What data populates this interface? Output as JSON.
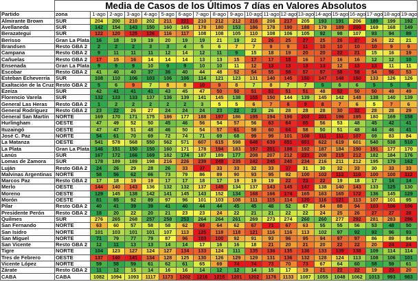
{
  "chart_data": {
    "type": "heatmap",
    "title": "Media de Casos de los Últimos 7 días en Valores Absolutos",
    "col_partido": "Partido",
    "col_zona": "zona",
    "dates": [
      "1-ago",
      "2-ago",
      "3-ago",
      "4-ago",
      "5-ago",
      "6-ago",
      "7-ago",
      "8-ago",
      "9-ago",
      "10-ago",
      "11-ago",
      "12-ago",
      "13-ago",
      "14-ago",
      "15-ago",
      "16-ago",
      "17-ago",
      "18-ago",
      "19-ago"
    ],
    "color_scale": {
      "low": "#2ea84a",
      "mid": "#f5f542",
      "high": "#e8161b",
      "scope": "per-row"
    },
    "rows": [
      {
        "partido": "Almirante Brown",
        "zona": "SUR",
        "values": [
          204,
          200,
          210,
          202,
          211,
          221,
          210,
          212,
          212,
          216,
          208,
          217,
          205,
          193,
          191,
          206,
          189,
          199,
          192
        ]
      },
      {
        "partido": "Avellaneda",
        "zona": "SUR",
        "values": [
          142,
          154,
          143,
          150,
          160,
          165,
          178,
          180,
          153,
          186,
          178,
          190,
          188,
          179,
          189,
          200,
          169,
          168,
          149
        ]
      },
      {
        "partido": "Berazategui",
        "zona": "SUR",
        "values": [
          122,
          120,
          125,
          126,
          116,
          117,
          108,
          108,
          105,
          110,
          108,
          106,
          105,
          92,
          98,
          107,
          93,
          94,
          89
        ]
      },
      {
        "partido": "Berisso",
        "zona": "Gran La Plata",
        "values": [
          16,
          18,
          19,
          19,
          20,
          19,
          19,
          21,
          19,
          22,
          26,
          25,
          27,
          25,
          26,
          27,
          24,
          22,
          21
        ]
      },
      {
        "partido": "Brandsen",
        "zona": "Resto GBA 2",
        "values": [
          2,
          2,
          2,
          3,
          3,
          4,
          5,
          6,
          7,
          7,
          9,
          9,
          11,
          10,
          10,
          10,
          10,
          9,
          9
        ]
      },
      {
        "partido": "Campana",
        "zona": "Resto GBA 2",
        "values": [
          9,
          11,
          11,
          11,
          12,
          14,
          12,
          11,
          9,
          15,
          18,
          19,
          20,
          20,
          22,
          21,
          15,
          16,
          19
        ]
      },
      {
        "partido": "Cañuelas",
        "zona": "Resto GBA 2",
        "values": [
          17,
          15,
          16,
          14,
          14,
          14,
          13,
          13,
          15,
          17,
          17,
          18,
          16,
          17,
          16,
          16,
          12,
          12,
          10
        ]
      },
      {
        "partido": "Ensenada",
        "zona": "Gran La Plata",
        "values": [
          9,
          9,
          9,
          10,
          9,
          9,
          10,
          10,
          11,
          12,
          13,
          13,
          13,
          13,
          12,
          13,
          13,
          11,
          11
        ]
      },
      {
        "partido": "Escobar",
        "zona": "Resto GBA 2",
        "values": [
          41,
          40,
          40,
          37,
          36,
          40,
          44,
          48,
          52,
          54,
          55,
          58,
          57,
          57,
          58,
          58,
          54,
          56,
          53
        ]
      },
      {
        "partido": "Esteban Echeverría",
        "zona": "SUR",
        "values": [
          108,
          110,
          106,
          103,
          106,
          106,
          114,
          121,
          123,
          131,
          140,
          145,
          150,
          147,
          148,
          150,
          133,
          126,
          126
        ]
      },
      {
        "partido": "Exaltación de la Cruz",
        "zona": "Resto GBA 2",
        "values": [
          5,
          6,
          9,
          7,
          8,
          8,
          10,
          9,
          8,
          7,
          8,
          7,
          7,
          5,
          6,
          6,
          5,
          5,
          5
        ]
      },
      {
        "partido": "Ezeiza",
        "zona": "SUR",
        "values": [
          42,
          41,
          41,
          41,
          43,
          45,
          47,
          50,
          50,
          51,
          52,
          51,
          51,
          48,
          52,
          50,
          50,
          49,
          49
        ]
      },
      {
        "partido": "Florencio Varela",
        "zona": "SUR",
        "values": [
          132,
          133,
          133,
          137,
          136,
          139,
          141,
          145,
          138,
          155,
          150,
          144,
          139,
          145,
          142,
          148,
          138,
          140,
          139
        ]
      },
      {
        "partido": "General Las Heras",
        "zona": "Resto GBA 2",
        "values": [
          1,
          2,
          2,
          2,
          2,
          2,
          3,
          5,
          5,
          6,
          7,
          8,
          9,
          8,
          7,
          6,
          5,
          7,
          6
        ]
      },
      {
        "partido": "General Rodríguez",
        "zona": "Resto GBA 2",
        "values": [
          23,
          22,
          26,
          27,
          24,
          24,
          24,
          23,
          22,
          23,
          26,
          28,
          28,
          28,
          30,
          32,
          28,
          28,
          29
        ]
      },
      {
        "partido": "General San Martín",
        "zona": "NORTE",
        "values": [
          169,
          170,
          171,
          175,
          186,
          177,
          188,
          197,
          186,
          195,
          194,
          196,
          202,
          201,
          196,
          195,
          180,
          169,
          158
        ]
      },
      {
        "partido": "Hurlingham",
        "zona": "OESTE",
        "values": [
          47,
          49,
          52,
          50,
          45,
          46,
          56,
          54,
          57,
          56,
          63,
          64,
          65,
          56,
          53,
          48,
          45,
          42,
          41
        ]
      },
      {
        "partido": "Ituzaingó",
        "zona": "OESTE",
        "values": [
          47,
          47,
          51,
          48,
          46,
          50,
          54,
          57,
          61,
          58,
          60,
          64,
          58,
          50,
          51,
          48,
          44,
          46,
          41
        ]
      },
      {
        "partido": "José C. Paz",
        "zona": "NORTE",
        "values": [
          54,
          61,
          70,
          69,
          72,
          74,
          71,
          69,
          68,
          99,
          99,
          101,
          108,
          111,
          111,
          107,
          69,
          83,
          84
        ]
      },
      {
        "partido": "La Matanza",
        "zona": "OESTE",
        "values": [
          541,
          578,
          568,
          550,
          562,
          571,
          607,
          615,
          598,
          648,
          639,
          651,
          651,
          622,
          619,
          601,
          540,
          538,
          510
        ]
      },
      {
        "partido": "La Plata",
        "zona": "Gran La Plata",
        "values": [
          146,
          151,
          150,
          150,
          160,
          171,
          178,
          194,
          183,
          197,
          201,
          198,
          192,
          187,
          184,
          190,
          191,
          177,
          170
        ]
      },
      {
        "partido": "Lanús",
        "zona": "SUR",
        "values": [
          167,
          172,
          166,
          169,
          182,
          174,
          187,
          189,
          177,
          208,
          207,
          212,
          221,
          208,
          215,
          212,
          182,
          184,
          176
        ]
      },
      {
        "partido": "Lomas de Zamora",
        "zona": "SUR",
        "values": [
          178,
          189,
          189,
          198,
          216,
          226,
          239,
          248,
          235,
          242,
          245,
          240,
          234,
          216,
          211,
          212,
          195,
          179,
          162
        ]
      },
      {
        "partido": "Luján",
        "zona": "Resto GBA 2",
        "values": [
          24,
          26,
          29,
          28,
          26,
          33,
          37,
          33,
          33,
          32,
          33,
          37,
          31,
          30,
          32,
          33,
          30,
          33,
          33
        ]
      },
      {
        "partido": "Malvinas Argentinas",
        "zona": "NORTE",
        "values": [
          58,
          56,
          62,
          66,
          73,
          79,
          86,
          89,
          90,
          93,
          95,
          92,
          100,
          102,
          112,
          110,
          100,
          100,
          112
        ]
      },
      {
        "partido": "Marcos Paz",
        "zona": "Resto GBA 2",
        "values": [
          17,
          18,
          19,
          19,
          17,
          17,
          18,
          17,
          19,
          19,
          19,
          22,
          23,
          22,
          19,
          18,
          17,
          14,
          14
        ]
      },
      {
        "partido": "Merlo",
        "zona": "OESTE",
        "values": [
          144,
          140,
          143,
          136,
          132,
          132,
          137,
          145,
          134,
          137,
          143,
          145,
          147,
          138,
          140,
          143,
          133,
          125,
          130
        ]
      },
      {
        "partido": "Moreno",
        "zona": "OESTE",
        "values": [
          129,
          145,
          138,
          142,
          141,
          145,
          143,
          152,
          134,
          168,
          166,
          174,
          165,
          163,
          165,
          172,
          136,
          145,
          129
        ]
      },
      {
        "partido": "Morón",
        "zona": "OESTE",
        "values": [
          81,
          85,
          92,
          89,
          97,
          96,
          101,
          103,
          108,
          111,
          115,
          114,
          120,
          116,
          121,
          113,
          107,
          101,
          95
        ]
      },
      {
        "partido": "Pilar",
        "zona": "Resto GBA 2",
        "values": [
          40,
          41,
          39,
          39,
          41,
          40,
          44,
          44,
          45,
          45,
          48,
          52,
          67,
          84,
          88,
          94,
          103,
          106,
          106
        ]
      },
      {
        "partido": "Presidente Perón",
        "zona": "Resto GBA 2",
        "values": [
          18,
          20,
          22,
          20,
          21,
          23,
          23,
          24,
          22,
          21,
          21,
          22,
          22,
          24,
          25,
          26,
          27,
          27,
          28
        ]
      },
      {
        "partido": "Quilmes",
        "zona": "SUR",
        "values": [
          276,
          265,
          268,
          257,
          258,
          253,
          264,
          264,
          261,
          269,
          273,
          274,
          260,
          260,
          277,
          292,
          281,
          283,
          296
        ]
      },
      {
        "partido": "San Fernando",
        "zona": "NORTE",
        "values": [
          63,
          60,
          57,
          58,
          58,
          62,
          69,
          64,
          62,
          67,
          71,
          67,
          63,
          55,
          55,
          56,
          53,
          48,
          50
        ]
      },
      {
        "partido": "San Isidro",
        "zona": "NORTE",
        "values": [
          101,
          103,
          101,
          101,
          107,
          113,
          125,
          118,
          118,
          121,
          116,
          116,
          113,
          102,
          97,
          92,
          92,
          96,
          93
        ]
      },
      {
        "partido": "San Miguel",
        "zona": "NORTE",
        "values": [
          71,
          79,
          77,
          79,
          87,
          96,
          103,
          100,
          92,
          91,
          93,
          96,
          95,
          94,
          97,
          97,
          86,
          89,
          84
        ]
      },
      {
        "partido": "San Vicente",
        "zona": "Resto GBA 2",
        "values": [
          12,
          11,
          13,
          13,
          14,
          14,
          17,
          16,
          16,
          18,
          21,
          20,
          21,
          20,
          22,
          22,
          20,
          24,
          24
        ]
      },
      {
        "partido": "Tigre",
        "zona": "NORTE",
        "values": [
          104,
          123,
          127,
          124,
          127,
          134,
          133,
          124,
          111,
          135,
          136,
          135,
          136,
          133,
          139,
          138,
          109,
          114,
          114
        ]
      },
      {
        "partido": "Tres de Febrero",
        "zona": "OESTE",
        "values": [
          137,
          140,
          141,
          134,
          128,
          125,
          130,
          126,
          129,
          129,
          131,
          136,
          132,
          128,
          124,
          113,
          108,
          106,
          101
        ]
      },
      {
        "partido": "Vicente López",
        "zona": "NORTE",
        "values": [
          59,
          58,
          59,
          61,
          62,
          61,
          65,
          69,
          74,
          74,
          73,
          70,
          73,
          67,
          64,
          60,
          58,
          59,
          61
        ]
      },
      {
        "partido": "Zárate",
        "zona": "Resto GBA 2",
        "values": [
          11,
          12,
          15,
          14,
          16,
          16,
          14,
          12,
          12,
          14,
          15,
          17,
          19,
          21,
          22,
          22,
          19,
          23,
          20
        ]
      },
      {
        "partido": "CABA",
        "zona": "CABA",
        "values": [
          1082,
          1094,
          1093,
          1117,
          1173,
          1202,
          1216,
          1215,
          1201,
          1202,
          1176,
          1133,
          1087,
          1055,
          1048,
          1062,
          1013,
          993,
          983
        ]
      }
    ]
  }
}
